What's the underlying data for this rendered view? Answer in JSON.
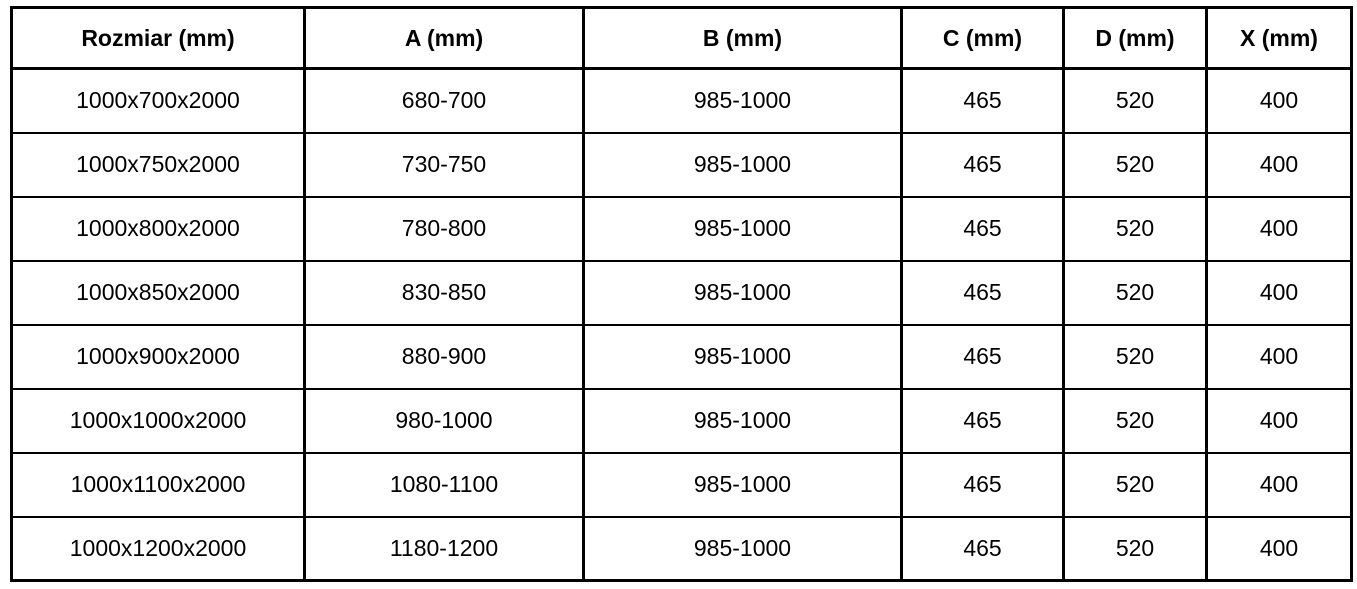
{
  "table": {
    "columns": [
      {
        "label": "Rozmiar (mm)"
      },
      {
        "label": "A (mm)"
      },
      {
        "label": "B (mm)"
      },
      {
        "label": "C (mm)"
      },
      {
        "label": "D (mm)"
      },
      {
        "label": "X (mm)"
      }
    ],
    "rows": [
      [
        "1000x700x2000",
        "680-700",
        "985-1000",
        "465",
        "520",
        "400"
      ],
      [
        "1000x750x2000",
        "730-750",
        "985-1000",
        "465",
        "520",
        "400"
      ],
      [
        "1000x800x2000",
        "780-800",
        "985-1000",
        "465",
        "520",
        "400"
      ],
      [
        "1000x850x2000",
        "830-850",
        "985-1000",
        "465",
        "520",
        "400"
      ],
      [
        "1000x900x2000",
        "880-900",
        "985-1000",
        "465",
        "520",
        "400"
      ],
      [
        "1000x1000x2000",
        "980-1000",
        "985-1000",
        "465",
        "520",
        "400"
      ],
      [
        "1000x1100x2000",
        "1080-1100",
        "985-1000",
        "465",
        "520",
        "400"
      ],
      [
        "1000x1200x2000",
        "1180-1200",
        "985-1000",
        "465",
        "520",
        "400"
      ]
    ]
  },
  "colors": {
    "border": "#000000",
    "text": "#000000",
    "background": "#ffffff"
  }
}
